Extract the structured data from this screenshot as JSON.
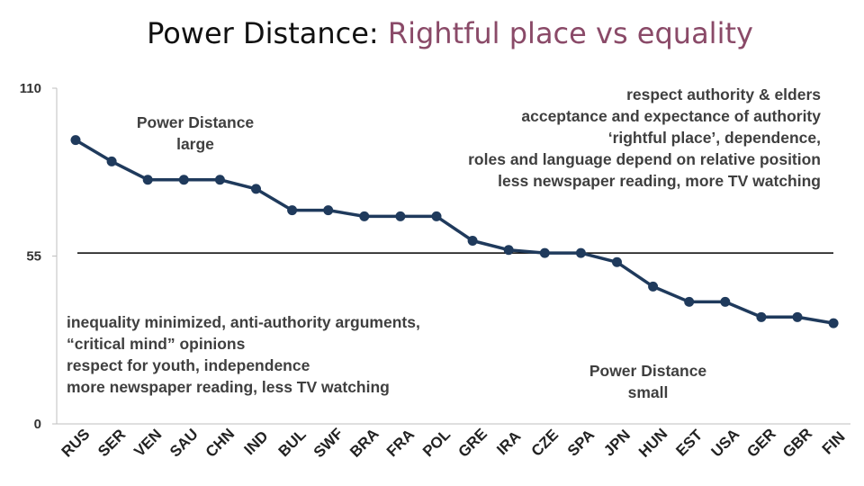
{
  "title": {
    "main": "Power Distance:",
    "accent": "Rightful place vs equality"
  },
  "colors": {
    "line": "#1f3a5c",
    "accent": "#8a4a68",
    "reference": "#000000",
    "axis": "#bfbfbf"
  },
  "annotations": {
    "large": [
      "Power Distance",
      "large"
    ],
    "high_traits": [
      "respect authority & elders",
      "acceptance and expectance of authority",
      "‘rightful place’, dependence,",
      "roles and language depend on relative position",
      "less newspaper reading, more TV watching"
    ],
    "low_traits": [
      "inequality minimized, anti-authority arguments,",
      "“critical mind” opinions",
      "respect for youth, independence",
      "more newspaper reading, less TV watching"
    ],
    "small": [
      "Power Distance",
      "small"
    ]
  },
  "chart_data": {
    "type": "line",
    "title": "Power Distance: Rightful place vs equality",
    "xlabel": "",
    "ylabel": "",
    "ylim": [
      0,
      110
    ],
    "yticks": [
      0,
      55,
      110
    ],
    "grid": false,
    "reference_line": 56,
    "categories": [
      "RUS",
      "SER",
      "VEN",
      "SAU",
      "CHN",
      "IND",
      "BUL",
      "SWF",
      "BRA",
      "FRA",
      "POL",
      "GRE",
      "IRA",
      "CZE",
      "SPA",
      "JPN",
      "HUN",
      "EST",
      "USA",
      "GER",
      "GBR",
      "FIN"
    ],
    "series": [
      {
        "name": "Power Distance",
        "values": [
          93,
          86,
          80,
          80,
          80,
          77,
          70,
          70,
          68,
          68,
          68,
          60,
          57,
          56,
          56,
          53,
          45,
          40,
          40,
          35,
          35,
          33
        ]
      }
    ]
  }
}
